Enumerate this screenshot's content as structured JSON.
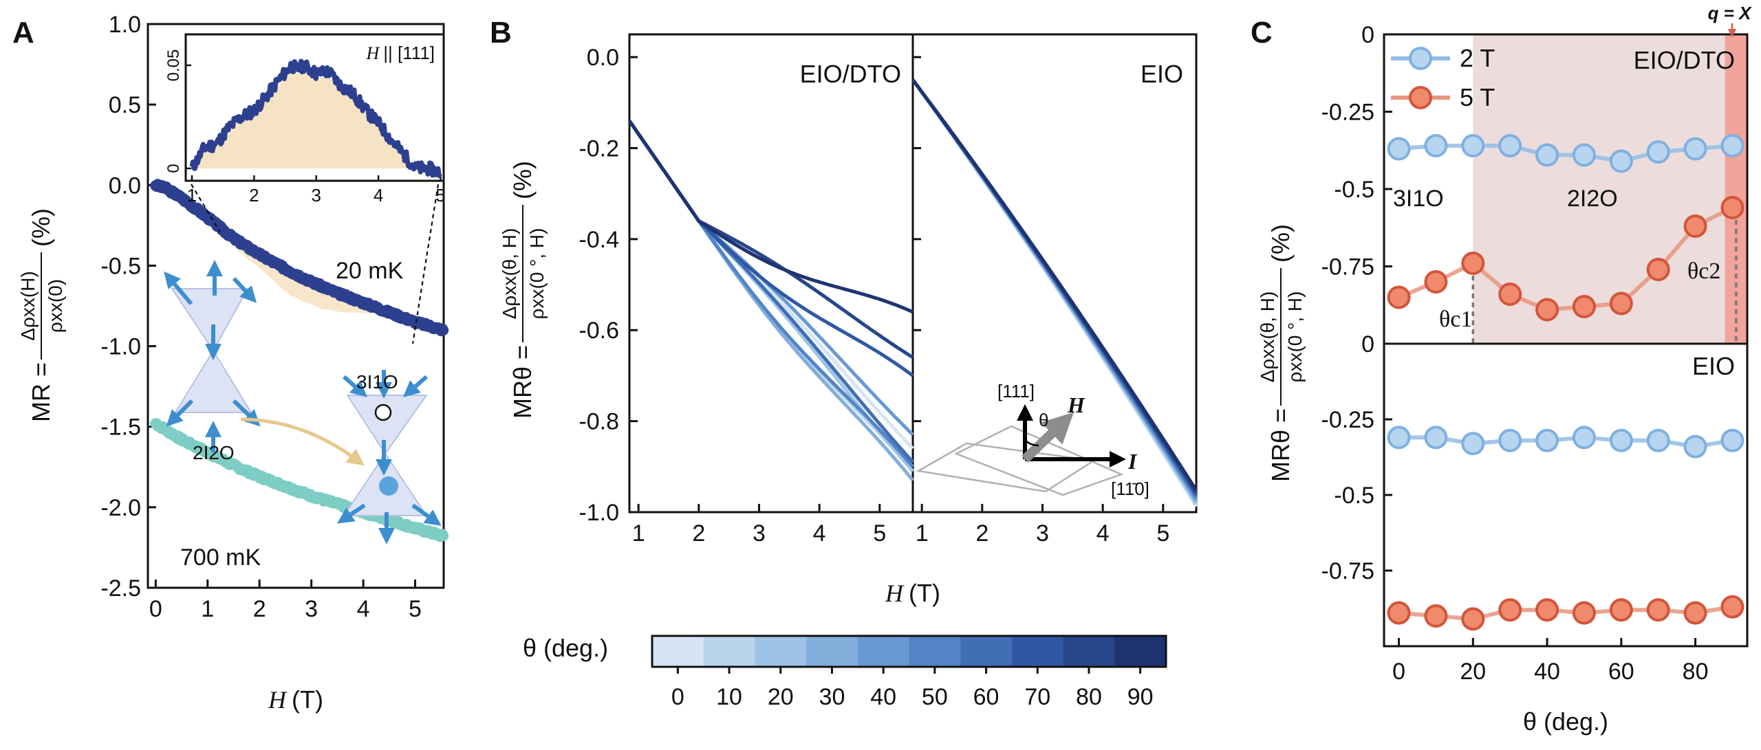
{
  "panels": {
    "a": "A",
    "b": "B",
    "c": "C"
  },
  "colors": {
    "dark_blue": "#2d3f8f",
    "teal": "#7ecdc4",
    "tan": "#f6e3c4",
    "blue_2T": "#93bde6",
    "orange_5T": "#e86a4e",
    "shade": "#ecdcdc",
    "shade_edge": "#f0a49a",
    "qx": "#e05a4a"
  },
  "chart_data": [
    {
      "id": "A",
      "type": "line",
      "xlabel_var": "H",
      "xlabel_unit": "(T)",
      "ylabel_lhs": "MR =",
      "ylabel_num": "Δρxx(H)",
      "ylabel_den": "ρxx(0)",
      "ylabel_unit": "(%)",
      "xlim": [
        -0.15,
        5.55
      ],
      "ylim": [
        -2.5,
        1.0
      ],
      "xticks": [
        "0",
        "1",
        "2",
        "3",
        "4",
        "5"
      ],
      "yticks": [
        "1.0",
        "0.5",
        "0.0",
        "-0.5",
        "-1.0",
        "-1.5",
        "-2.0",
        "-2.5"
      ],
      "series": [
        {
          "name": "20 mK",
          "x": [
            0,
            0.2,
            0.5,
            1,
            1.5,
            2,
            2.5,
            3,
            3.5,
            4,
            4.5,
            5,
            5.55
          ],
          "y": [
            0.0,
            -0.02,
            -0.08,
            -0.2,
            -0.33,
            -0.43,
            -0.52,
            -0.6,
            -0.67,
            -0.73,
            -0.79,
            -0.85,
            -0.9
          ]
        },
        {
          "name": "700 mK",
          "x": [
            0,
            0.5,
            1,
            1.5,
            2,
            2.5,
            3,
            3.5,
            4,
            4.5,
            5,
            5.55
          ],
          "y": [
            -1.48,
            -1.58,
            -1.66,
            -1.74,
            -1.81,
            -1.87,
            -1.93,
            -1.98,
            -2.03,
            -2.08,
            -2.13,
            -2.18
          ]
        }
      ],
      "inset": {
        "title_var": "H",
        "title_rest": "|| [111]",
        "xlim": [
          0.9,
          5.05
        ],
        "ylim": [
          -0.006,
          0.065
        ],
        "xticks": [
          "1",
          "2",
          "3",
          "4",
          "5"
        ],
        "yticks": [
          "0",
          "0.05"
        ],
        "x": [
          1.0,
          1.2,
          1.4,
          1.6,
          1.8,
          2.0,
          2.2,
          2.4,
          2.6,
          2.7,
          2.8,
          3.0,
          3.2,
          3.4,
          3.6,
          3.8,
          4.0,
          4.2,
          4.4,
          4.6,
          4.8,
          5.0
        ],
        "y": [
          0.0,
          0.01,
          0.012,
          0.02,
          0.025,
          0.028,
          0.035,
          0.043,
          0.05,
          0.048,
          0.05,
          0.046,
          0.047,
          0.04,
          0.036,
          0.028,
          0.022,
          0.014,
          0.007,
          0.0,
          0.0,
          -0.002
        ]
      },
      "annotations": {
        "label_20mK": "20 mK",
        "label_700mK": "700 mK",
        "label_3I1O": "3I1O",
        "label_2I2O": "2I2O"
      }
    },
    {
      "id": "B",
      "type": "line",
      "xlabel_var": "H",
      "xlabel_unit": "(T)",
      "ylabel_lhs": "MRθ =",
      "ylabel_num": "Δρxx(θ, H)",
      "ylabel_den": "ρxx(0 °, H)",
      "ylabel_unit": "(%)",
      "ylim": [
        -1.0,
        0.05
      ],
      "yticks": [
        "0.0",
        "-0.2",
        "-0.4",
        "-0.6",
        "-0.8",
        "-1.0"
      ],
      "xticks": [
        "1",
        "2",
        "3",
        "4",
        "5"
      ],
      "subplots": [
        {
          "name": "EIO/DTO",
          "xlim": [
            0.85,
            5.55
          ],
          "angles": [
            0,
            10,
            20,
            30,
            40,
            50,
            60,
            70,
            80,
            90
          ],
          "end_values": [
            -0.85,
            -0.93,
            -0.9,
            -0.95,
            -0.82,
            -0.92,
            -0.88,
            -0.72,
            -0.65,
            -0.58
          ]
        },
        {
          "name": "EIO",
          "xlim": [
            0.85,
            5.55
          ],
          "start_value": -0.05,
          "end_value": -0.97
        }
      ],
      "inset_labels": {
        "dir_111": "[111]",
        "theta": "θ",
        "H": "H",
        "I": "I",
        "dir_1m10": "[11̄0]"
      },
      "colorbar": {
        "label": "θ (deg.)",
        "ticks": [
          "0",
          "10",
          "20",
          "30",
          "40",
          "50",
          "60",
          "70",
          "80",
          "90"
        ],
        "range": [
          -5,
          95
        ]
      }
    },
    {
      "id": "C",
      "type": "line",
      "xlabel": "θ (deg.)",
      "ylabel_lhs": "MRθ =",
      "ylabel_num": "Δρxx(θ, H)",
      "ylabel_den": "ρxx(0 °, H)",
      "ylabel_unit": "(%)",
      "xlim": [
        -4,
        94
      ],
      "xticks": [
        "0",
        "20",
        "40",
        "60",
        "80"
      ],
      "x": [
        0,
        10,
        20,
        30,
        40,
        50,
        60,
        70,
        80,
        90
      ],
      "legend": {
        "placement": "top-left",
        "entries": [
          "2 T",
          "5 T"
        ]
      },
      "top": {
        "name": "EIO/DTO",
        "ylim": [
          -1.0,
          0.0
        ],
        "yticks": [
          "0",
          "-0.25",
          "-0.5",
          "-0.75",
          "0"
        ],
        "series": [
          {
            "name": "2 T",
            "y": [
              -0.37,
              -0.36,
              -0.36,
              -0.36,
              -0.39,
              -0.39,
              -0.41,
              -0.38,
              -0.37,
              -0.36
            ]
          },
          {
            "name": "5 T",
            "y": [
              -0.85,
              -0.8,
              -0.74,
              -0.84,
              -0.89,
              -0.88,
              -0.87,
              -0.76,
              -0.62,
              -0.56
            ]
          }
        ],
        "labels": {
          "phase_left": "3I1O",
          "phase_mid": "2I2O",
          "theta_c1": "θc1",
          "theta_c2": "θc2",
          "qx": "q = X"
        },
        "shaded_range": [
          20,
          94
        ],
        "qx_range": [
          88,
          94
        ],
        "theta_c1": 20,
        "theta_c2": 91
      },
      "bottom": {
        "name": "EIO",
        "ylim": [
          -1.0,
          0.0
        ],
        "yticks": [
          "-0.25",
          "-0.5",
          "-0.75"
        ],
        "series": [
          {
            "name": "2 T",
            "y": [
              -0.31,
              -0.31,
              -0.33,
              -0.32,
              -0.32,
              -0.31,
              -0.32,
              -0.32,
              -0.34,
              -0.32
            ]
          },
          {
            "name": "5 T",
            "y": [
              -0.89,
              -0.9,
              -0.91,
              -0.88,
              -0.88,
              -0.89,
              -0.88,
              -0.88,
              -0.89,
              -0.87
            ]
          }
        ]
      }
    }
  ]
}
